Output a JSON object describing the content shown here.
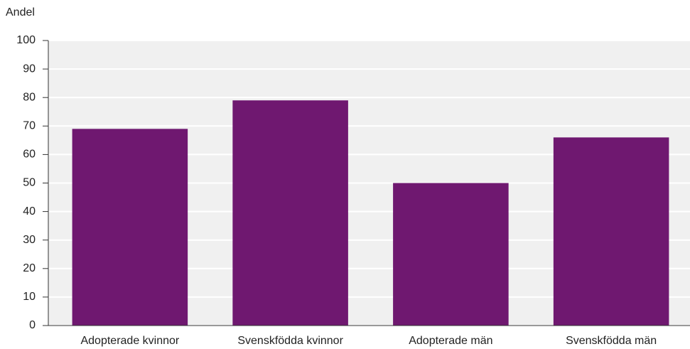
{
  "chart_data": {
    "type": "bar",
    "y_label": "Andel",
    "categories": [
      "Adopterade kvinnor",
      "Svenskfödda kvinnor",
      "Adopterade män",
      "Svenskfödda män"
    ],
    "values": [
      69,
      79,
      50,
      66
    ],
    "color": "#6f1870",
    "ylim": [
      0,
      100
    ],
    "yticks": [
      0,
      10,
      20,
      30,
      40,
      50,
      60,
      70,
      80,
      90,
      100
    ],
    "grid": true
  }
}
